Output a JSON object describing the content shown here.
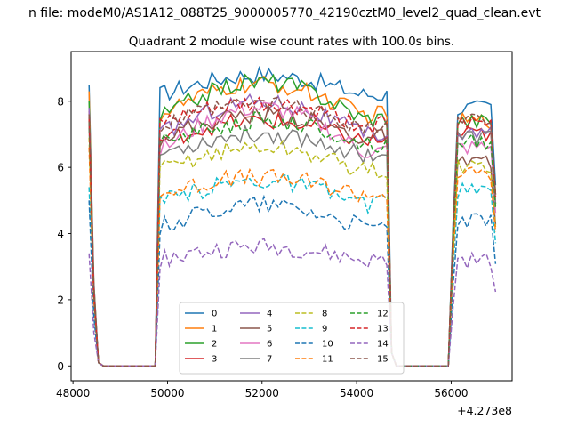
{
  "figure": {
    "suptitle": "n file: modeM0/AS1A12_088T25_9000005770_42190cztM0_level2_quad_clean.evt",
    "title": "Quadrant 2 module wise count rates with 100.0s bins.",
    "x_offset_label": "+4.273e8"
  },
  "chart_data": {
    "type": "line",
    "title": "Quadrant 2 module wise count rates with 100.0s bins.",
    "xlabel": "",
    "ylabel": "",
    "x_offset": 427300000,
    "xlim": [
      47960,
      57290
    ],
    "ylim": [
      -0.45,
      9.5
    ],
    "xticks": [
      48000,
      50000,
      52000,
      54000,
      56000
    ],
    "yticks": [
      0,
      2,
      4,
      6,
      8
    ],
    "grid": false,
    "legend_placement": "lower center, 4 columns",
    "segments": [
      {
        "x": [
          48340,
          48440,
          48540,
          48640,
          48740,
          48840,
          48940,
          49040,
          49140,
          49240,
          49340,
          49440,
          49540,
          49640,
          49740
        ]
      },
      {
        "x": [
          49840,
          49940,
          50040,
          50140,
          50240,
          50340,
          50440,
          50540,
          50640,
          50740,
          50840,
          50940,
          51040,
          51140,
          51240,
          51340,
          51440,
          51540,
          51640,
          51740,
          51840,
          51940,
          52040,
          52140,
          52240,
          52340,
          52440,
          52540,
          52640,
          52740,
          52840,
          52940,
          53040,
          53140,
          53240,
          53340,
          53440,
          53540,
          53640,
          53740,
          53840,
          53940,
          54040,
          54140,
          54240,
          54340,
          54440,
          54540,
          54640,
          54740
        ]
      },
      {
        "x": [
          54840,
          54940,
          55040,
          55140,
          55240,
          55340,
          55440,
          55540,
          55640,
          55740,
          55840,
          55940
        ]
      },
      {
        "x": [
          56040,
          56140,
          56240,
          56340,
          56440,
          56540,
          56640,
          56740,
          56840,
          56940
        ]
      }
    ],
    "series": [
      {
        "name": "0",
        "color": "#1f77b4",
        "dash": "solid",
        "peak": 8.5,
        "level_a": 8.2,
        "level_b": 8.8,
        "level_c": 7.8
      },
      {
        "name": "1",
        "color": "#ff7f0e",
        "dash": "solid",
        "peak": 8.3,
        "level_a": 7.6,
        "level_b": 8.5,
        "level_c": 7.4
      },
      {
        "name": "2",
        "color": "#2ca02c",
        "dash": "solid",
        "peak": 8.0,
        "level_a": 7.5,
        "level_b": 8.6,
        "level_c": 7.4
      },
      {
        "name": "3",
        "color": "#d62728",
        "dash": "solid",
        "peak": 7.7,
        "level_a": 6.8,
        "level_b": 7.4,
        "level_c": 7.0
      },
      {
        "name": "4",
        "color": "#9467bd",
        "dash": "solid",
        "peak": 7.8,
        "level_a": 7.0,
        "level_b": 8.0,
        "level_c": 7.0
      },
      {
        "name": "5",
        "color": "#8c564b",
        "dash": "solid",
        "peak": 7.6,
        "level_a": 6.9,
        "level_b": 7.6,
        "level_c": 6.1
      },
      {
        "name": "6",
        "color": "#e377c2",
        "dash": "solid",
        "peak": 7.4,
        "level_a": 6.5,
        "level_b": 7.8,
        "level_c": 6.6
      },
      {
        "name": "7",
        "color": "#7f7f7f",
        "dash": "solid",
        "peak": 7.3,
        "level_a": 6.4,
        "level_b": 7.0,
        "level_c": 6.9
      },
      {
        "name": "8",
        "color": "#bcbd22",
        "dash": "dashed",
        "peak": 6.9,
        "level_a": 5.9,
        "level_b": 6.6,
        "level_c": 6.0
      },
      {
        "name": "9",
        "color": "#17becf",
        "dash": "dashed",
        "peak": 5.4,
        "level_a": 4.9,
        "level_b": 5.6,
        "level_c": 5.3
      },
      {
        "name": "10",
        "color": "#1f77b4",
        "dash": "dashed",
        "peak": 5.0,
        "level_a": 4.2,
        "level_b": 4.9,
        "level_c": 4.4
      },
      {
        "name": "11",
        "color": "#ff7f0e",
        "dash": "dashed",
        "peak": 6.6,
        "level_a": 5.2,
        "level_b": 5.7,
        "level_c": 5.8
      },
      {
        "name": "12",
        "color": "#2ca02c",
        "dash": "dashed",
        "peak": 7.4,
        "level_a": 6.7,
        "level_b": 7.4,
        "level_c": 6.8
      },
      {
        "name": "13",
        "color": "#d62728",
        "dash": "dashed",
        "peak": 7.5,
        "level_a": 7.3,
        "level_b": 7.9,
        "level_c": 7.3
      },
      {
        "name": "14",
        "color": "#9467bd",
        "dash": "dashed",
        "peak": 3.4,
        "level_a": 3.2,
        "level_b": 3.6,
        "level_c": 3.2
      },
      {
        "name": "15",
        "color": "#8c564b",
        "dash": "dashed",
        "peak": 7.6,
        "level_a": 7.2,
        "level_b": 7.9,
        "level_c": 7.4
      }
    ]
  }
}
